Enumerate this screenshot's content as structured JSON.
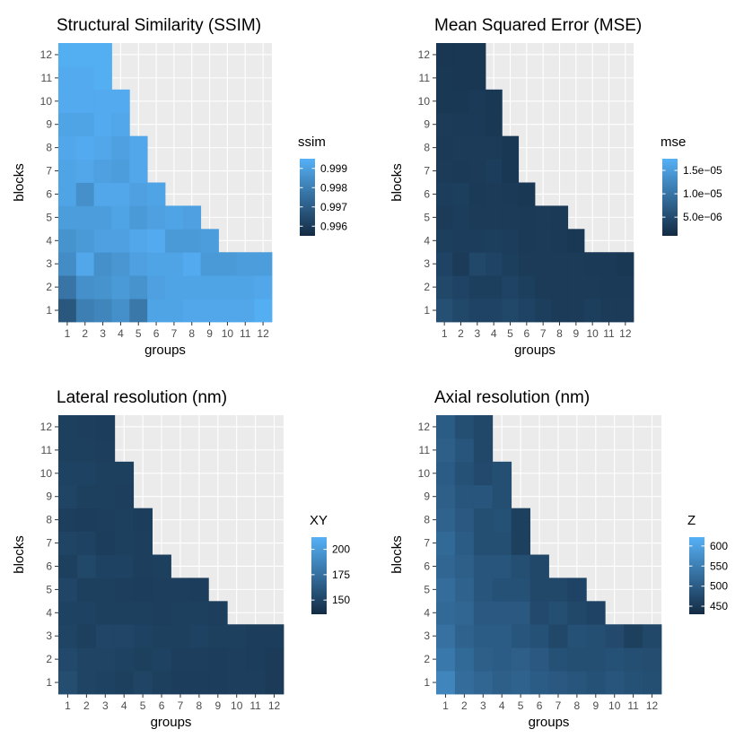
{
  "chart_data": [
    {
      "type": "heatmap",
      "title": "Structural Similarity (SSIM)",
      "xlabel": "groups",
      "ylabel": "blocks",
      "x_ticks": [
        "1",
        "2",
        "3",
        "4",
        "5",
        "6",
        "7",
        "8",
        "9",
        "10",
        "11",
        "12"
      ],
      "y_ticks": [
        "1",
        "2",
        "3",
        "4",
        "5",
        "6",
        "7",
        "8",
        "9",
        "10",
        "11",
        "12"
      ],
      "legend": {
        "title": "ssim",
        "breaks": [
          "0.999",
          "0.998",
          "0.997",
          "0.996"
        ],
        "break_values": [
          0.999,
          0.998,
          0.997,
          0.996
        ],
        "range": [
          0.9955,
          0.9995
        ]
      },
      "color_low": "#132B43",
      "color_high": "#56B1F7",
      "values": [
        [
          0.9968,
          0.998,
          0.9982,
          0.9985,
          0.9978,
          0.9991,
          0.9991,
          0.9992,
          0.9992,
          0.9992,
          0.9992,
          0.9994
        ],
        [
          0.9977,
          0.9985,
          0.9986,
          0.9988,
          0.9986,
          0.999,
          0.9991,
          0.9991,
          0.9991,
          0.9991,
          0.9991,
          0.9992
        ],
        [
          0.9984,
          0.9992,
          0.9985,
          0.9987,
          0.999,
          0.9991,
          0.9991,
          0.9993,
          0.9988,
          0.9988,
          0.9989,
          0.9989
        ],
        [
          0.9986,
          0.9988,
          0.999,
          0.999,
          0.9992,
          0.9993,
          0.9988,
          0.9988,
          0.9989,
          null,
          null,
          null
        ],
        [
          0.9989,
          0.9989,
          0.9989,
          0.9991,
          0.9988,
          0.999,
          0.9991,
          0.999,
          null,
          null,
          null,
          null
        ],
        [
          0.9991,
          0.9985,
          0.9992,
          0.9992,
          0.999,
          0.9991,
          null,
          null,
          null,
          null,
          null,
          null
        ],
        [
          0.9991,
          0.9992,
          0.999,
          0.9989,
          0.9992,
          null,
          null,
          null,
          null,
          null,
          null,
          null
        ],
        [
          0.9992,
          0.9993,
          0.9992,
          0.999,
          0.9992,
          null,
          null,
          null,
          null,
          null,
          null,
          null
        ],
        [
          0.9991,
          0.9991,
          0.9993,
          0.9992,
          null,
          null,
          null,
          null,
          null,
          null,
          null,
          null
        ],
        [
          0.9993,
          0.9993,
          0.9993,
          0.9993,
          null,
          null,
          null,
          null,
          null,
          null,
          null,
          null
        ],
        [
          0.9993,
          0.9993,
          0.9994,
          null,
          null,
          null,
          null,
          null,
          null,
          null,
          null,
          null
        ],
        [
          0.9994,
          0.9994,
          0.9994,
          null,
          null,
          null,
          null,
          null,
          null,
          null,
          null,
          null
        ]
      ]
    },
    {
      "type": "heatmap",
      "title": "Mean Squared Error (MSE)",
      "xlabel": "groups",
      "ylabel": "blocks",
      "x_ticks": [
        "1",
        "2",
        "3",
        "4",
        "5",
        "6",
        "7",
        "8",
        "9",
        "10",
        "11",
        "12"
      ],
      "y_ticks": [
        "1",
        "2",
        "3",
        "4",
        "5",
        "6",
        "7",
        "8",
        "9",
        "10",
        "11",
        "12"
      ],
      "legend": {
        "title": "mse",
        "breaks": [
          "1.5e−05",
          "1.0e−05",
          "5.0e−06"
        ],
        "break_values": [
          1.5e-05,
          1e-05,
          5e-06
        ],
        "range": [
          1e-06,
          1.75e-05
        ]
      },
      "color_low": "#132B43",
      "color_high": "#56B1F7",
      "values": [
        [
          5.5e-06,
          4.5e-06,
          4e-06,
          4e-06,
          4.5e-06,
          4e-06,
          3.5e-06,
          3e-06,
          3e-06,
          3.5e-06,
          3e-06,
          3e-06
        ],
        [
          4.5e-06,
          4e-06,
          3.5e-06,
          3.5e-06,
          4e-06,
          3.5e-06,
          3e-06,
          3e-06,
          3e-06,
          3e-06,
          2.8e-06,
          2.8e-06
        ],
        [
          4e-06,
          3e-06,
          4.5e-06,
          4e-06,
          3.5e-06,
          3e-06,
          3e-06,
          3e-06,
          3e-06,
          2.8e-06,
          2.8e-06,
          2.6e-06
        ],
        [
          3.5e-06,
          3.2e-06,
          3.2e-06,
          3.5e-06,
          3.2e-06,
          2.8e-06,
          3e-06,
          2.8e-06,
          2.6e-06,
          null,
          null,
          null
        ],
        [
          3e-06,
          3.2e-06,
          3e-06,
          3e-06,
          3e-06,
          2.8e-06,
          3e-06,
          2.8e-06,
          null,
          null,
          null,
          null
        ],
        [
          3.2e-06,
          3.5e-06,
          2.8e-06,
          3e-06,
          2.8e-06,
          2.6e-06,
          null,
          null,
          null,
          null,
          null,
          null
        ],
        [
          3e-06,
          2.8e-06,
          3e-06,
          3.2e-06,
          2.6e-06,
          null,
          null,
          null,
          null,
          null,
          null,
          null
        ],
        [
          2.8e-06,
          3e-06,
          3e-06,
          3e-06,
          2.6e-06,
          null,
          null,
          null,
          null,
          null,
          null,
          null
        ],
        [
          3e-06,
          2.8e-06,
          2.8e-06,
          2.6e-06,
          null,
          null,
          null,
          null,
          null,
          null,
          null,
          null
        ],
        [
          2.6e-06,
          2.6e-06,
          2.8e-06,
          2.6e-06,
          null,
          null,
          null,
          null,
          null,
          null,
          null,
          null
        ],
        [
          2.6e-06,
          2.5e-06,
          2.4e-06,
          null,
          null,
          null,
          null,
          null,
          null,
          null,
          null,
          null
        ],
        [
          2.5e-06,
          2.5e-06,
          2.4e-06,
          null,
          null,
          null,
          null,
          null,
          null,
          null,
          null,
          null
        ]
      ]
    },
    {
      "type": "heatmap",
      "title": "Lateral resolution (nm)",
      "xlabel": "groups",
      "ylabel": "blocks",
      "x_ticks": [
        "1",
        "2",
        "3",
        "4",
        "5",
        "6",
        "7",
        "8",
        "9",
        "10",
        "11",
        "12"
      ],
      "y_ticks": [
        "1",
        "2",
        "3",
        "4",
        "5",
        "6",
        "7",
        "8",
        "9",
        "10",
        "11",
        "12"
      ],
      "legend": {
        "title": "XY",
        "breaks": [
          "200",
          "175",
          "150"
        ],
        "break_values": [
          200,
          175,
          150
        ],
        "range": [
          136,
          212
        ]
      },
      "color_low": "#132B43",
      "color_high": "#56B1F7",
      "values": [
        [
          155,
          150,
          149,
          148,
          150,
          148,
          146,
          146,
          146,
          147,
          147,
          145
        ],
        [
          153,
          150,
          150,
          149,
          148,
          149,
          147,
          147,
          146,
          147,
          146,
          145
        ],
        [
          150,
          148,
          151,
          151,
          149,
          148,
          148,
          149,
          148,
          148,
          146,
          146
        ],
        [
          149,
          149,
          148,
          148,
          148,
          147,
          148,
          148,
          147,
          null,
          null,
          null
        ],
        [
          151,
          148,
          148,
          147,
          146,
          147,
          147,
          146,
          null,
          null,
          null,
          null
        ],
        [
          148,
          152,
          149,
          149,
          147,
          148,
          null,
          null,
          null,
          null,
          null,
          null
        ],
        [
          150,
          149,
          146,
          148,
          147,
          null,
          null,
          null,
          null,
          null,
          null,
          null
        ],
        [
          147,
          146,
          147,
          148,
          146,
          null,
          null,
          null,
          null,
          null,
          null,
          null
        ],
        [
          150,
          148,
          148,
          147,
          null,
          null,
          null,
          null,
          null,
          null,
          null,
          null
        ],
        [
          149,
          149,
          148,
          148,
          null,
          null,
          null,
          null,
          null,
          null,
          null,
          null
        ],
        [
          148,
          148,
          147,
          null,
          null,
          null,
          null,
          null,
          null,
          null,
          null,
          null
        ],
        [
          148,
          147,
          146,
          null,
          null,
          null,
          null,
          null,
          null,
          null,
          null,
          null
        ]
      ]
    },
    {
      "type": "heatmap",
      "title": "Axial resolution (nm)",
      "xlabel": "groups",
      "ylabel": "blocks",
      "x_ticks": [
        "1",
        "2",
        "3",
        "4",
        "5",
        "6",
        "7",
        "8",
        "9",
        "10",
        "11",
        "12"
      ],
      "y_ticks": [
        "1",
        "2",
        "3",
        "4",
        "5",
        "6",
        "7",
        "8",
        "9",
        "10",
        "11",
        "12"
      ],
      "legend": {
        "title": "Z",
        "breaks": [
          "600",
          "550",
          "500",
          "450"
        ],
        "break_values": [
          600,
          550,
          500,
          450
        ],
        "range": [
          430,
          622
        ]
      },
      "color_low": "#132B43",
      "color_high": "#56B1F7",
      "values": [
        [
          560,
          525,
          515,
          505,
          510,
          500,
          495,
          490,
          485,
          490,
          485,
          480
        ],
        [
          540,
          520,
          505,
          500,
          505,
          495,
          485,
          480,
          480,
          485,
          480,
          478
        ],
        [
          530,
          510,
          500,
          500,
          490,
          485,
          470,
          485,
          480,
          475,
          460,
          470
        ],
        [
          520,
          515,
          495,
          495,
          495,
          475,
          480,
          470,
          465,
          null,
          null,
          null
        ],
        [
          525,
          510,
          490,
          485,
          485,
          470,
          470,
          465,
          null,
          null,
          null,
          null
        ],
        [
          515,
          505,
          490,
          490,
          480,
          470,
          null,
          null,
          null,
          null,
          null,
          null
        ],
        [
          520,
          500,
          480,
          480,
          460,
          null,
          null,
          null,
          null,
          null,
          null,
          null
        ],
        [
          510,
          495,
          480,
          485,
          460,
          null,
          null,
          null,
          null,
          null,
          null,
          null
        ],
        [
          505,
          490,
          490,
          480,
          null,
          null,
          null,
          null,
          null,
          null,
          null,
          null
        ],
        [
          500,
          485,
          475,
          480,
          null,
          null,
          null,
          null,
          null,
          null,
          null,
          null
        ],
        [
          505,
          490,
          470,
          null,
          null,
          null,
          null,
          null,
          null,
          null,
          null,
          null
        ],
        [
          500,
          480,
          470,
          null,
          null,
          null,
          null,
          null,
          null,
          null,
          null,
          null
        ]
      ]
    }
  ]
}
